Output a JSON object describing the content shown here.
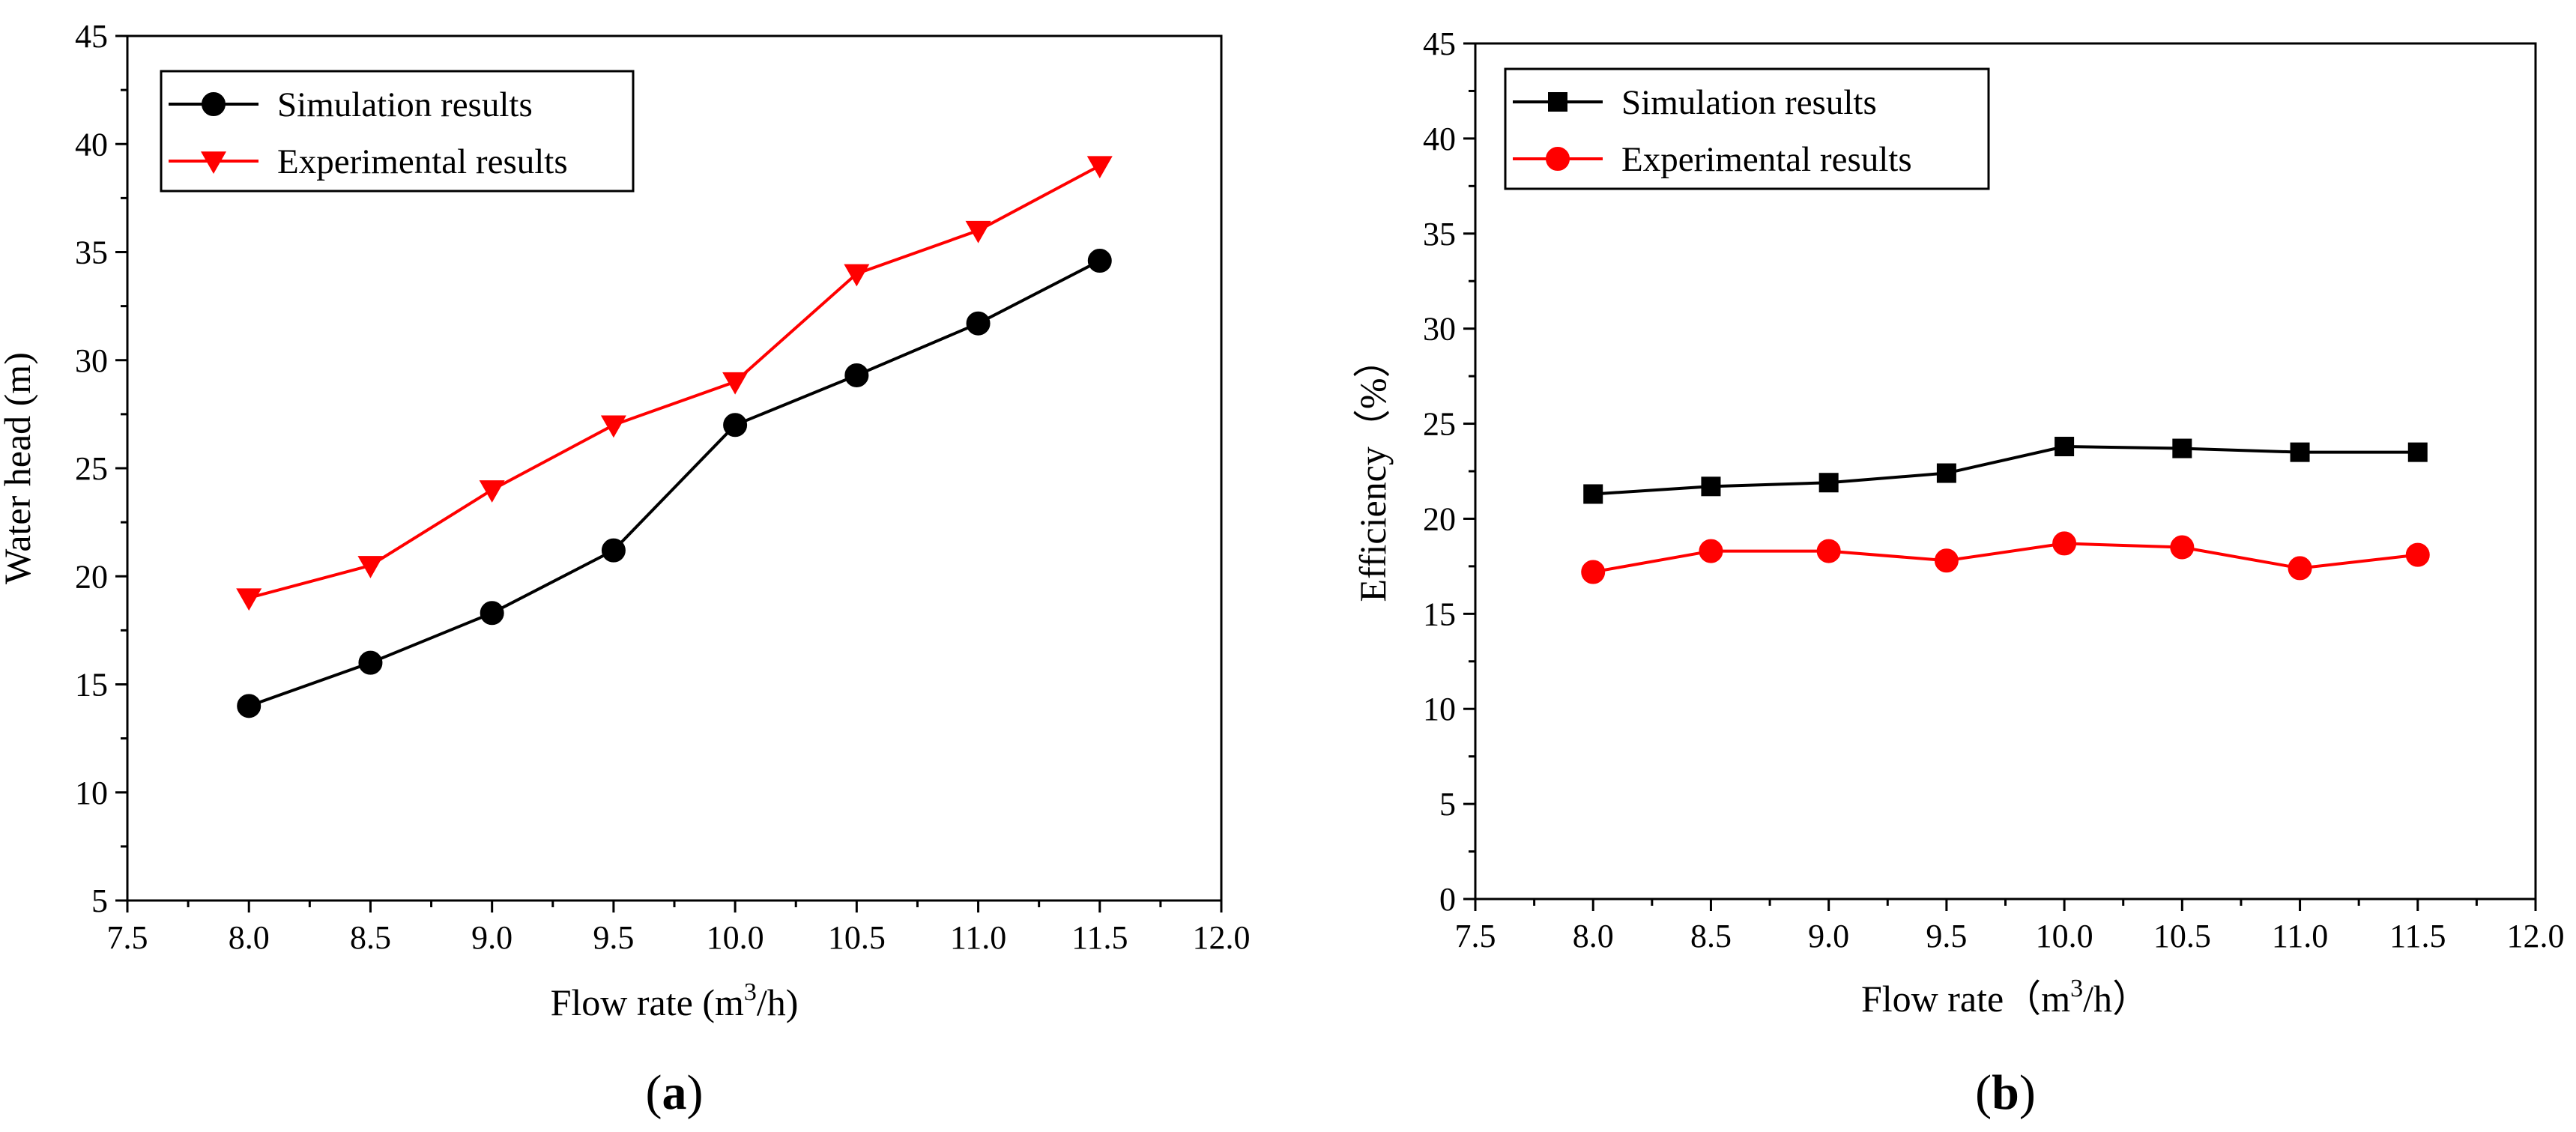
{
  "chart_data": [
    {
      "id": "a",
      "type": "line",
      "panel_label": "a",
      "title": "",
      "xlabel": "Flow rate (m",
      "xlabel_sup": "3",
      "xlabel_end": "/h)",
      "ylabel": "Water head (m)",
      "xlim": [
        7.5,
        12.0
      ],
      "ylim": [
        5,
        45
      ],
      "xticks": [
        "7.5",
        "8.0",
        "8.5",
        "9.0",
        "9.5",
        "10.0",
        "10.5",
        "11.0",
        "11.5",
        "12.0"
      ],
      "yticks": [
        "5",
        "10",
        "15",
        "20",
        "25",
        "30",
        "35",
        "40",
        "45"
      ],
      "grid": false,
      "legend_position": "top-left",
      "x": [
        8.0,
        8.5,
        9.0,
        9.5,
        10.0,
        10.5,
        11.0,
        11.5
      ],
      "series": [
        {
          "name": "Simulation results",
          "color": "#000000",
          "marker": "circle",
          "values": [
            14.0,
            16.0,
            18.3,
            21.2,
            27.0,
            29.3,
            31.7,
            34.6
          ]
        },
        {
          "name": "Experimental results",
          "color": "#ff0000",
          "marker": "triangle-down",
          "values": [
            19.0,
            20.5,
            24.0,
            27.0,
            29.0,
            34.0,
            36.0,
            39.0
          ]
        }
      ]
    },
    {
      "id": "b",
      "type": "line",
      "panel_label": "b",
      "title": "",
      "xlabel": "Flow rate（m",
      "xlabel_sup": "3",
      "xlabel_end": "/h）",
      "ylabel": "Efficiency（%）",
      "xlim": [
        7.5,
        12.0
      ],
      "ylim": [
        0,
        45
      ],
      "xticks": [
        "7.5",
        "8.0",
        "8.5",
        "9.0",
        "9.5",
        "10.0",
        "10.5",
        "11.0",
        "11.5",
        "12.0"
      ],
      "yticks": [
        "0",
        "5",
        "10",
        "15",
        "20",
        "25",
        "30",
        "35",
        "40",
        "45"
      ],
      "grid": false,
      "legend_position": "top-left",
      "x": [
        8.0,
        8.5,
        9.0,
        9.5,
        10.0,
        10.5,
        11.0,
        11.5
      ],
      "series": [
        {
          "name": "Simulation results",
          "color": "#000000",
          "marker": "square",
          "values": [
            21.3,
            21.7,
            21.9,
            22.4,
            23.8,
            23.7,
            23.5,
            23.5
          ]
        },
        {
          "name": "Experimental results",
          "color": "#ff0000",
          "marker": "circle",
          "values": [
            17.2,
            18.3,
            18.3,
            17.8,
            18.7,
            18.5,
            17.4,
            18.1
          ]
        }
      ]
    }
  ]
}
